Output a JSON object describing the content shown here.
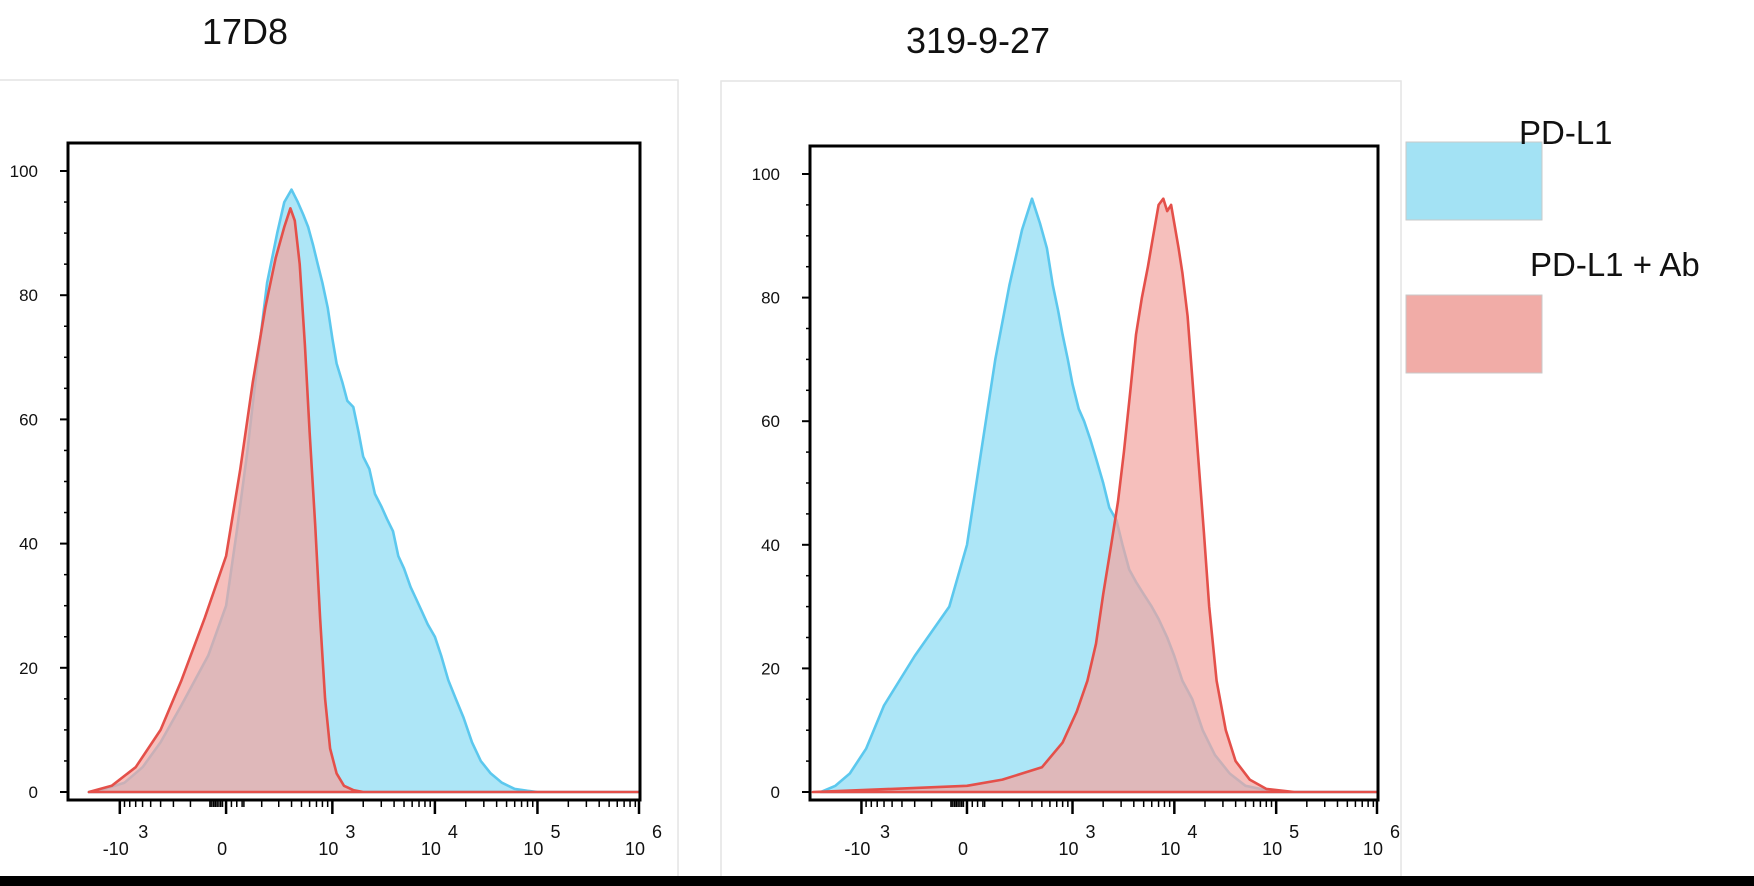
{
  "chart_data": [
    {
      "type": "area",
      "title": "17D8",
      "ylim": [
        0,
        100
      ],
      "y_ticks": [
        "0",
        "20",
        "40",
        "60",
        "80",
        "100"
      ],
      "x_scale": "biexponential",
      "x_ticks": [
        {
          "base": "-10",
          "exp": "3",
          "value": -1000
        },
        {
          "base": "0",
          "exp": "",
          "value": 0
        },
        {
          "base": "10",
          "exp": "3",
          "value": 1000
        },
        {
          "base": "10",
          "exp": "4",
          "value": 10000
        },
        {
          "base": "10",
          "exp": "5",
          "value": 100000
        },
        {
          "base": "10",
          "exp": "6",
          "value": 1000000
        }
      ],
      "series": [
        {
          "name": "PD-L1",
          "color": "#5cc8ee",
          "fill": "#a9e5f7",
          "x": [
            -2000,
            -1400,
            -900,
            -600,
            -400,
            -250,
            -100,
            0,
            60,
            120,
            180,
            230,
            290,
            340,
            400,
            460,
            520,
            580,
            650,
            720,
            800,
            900,
            1000,
            1100,
            1250,
            1400,
            1600,
            1800,
            2000,
            2300,
            2600,
            3000,
            3400,
            3900,
            4400,
            5000,
            5800,
            6600,
            7500,
            8500,
            10000,
            11500,
            13500,
            16000,
            19000,
            23000,
            28000,
            35000,
            45000,
            60000,
            80000,
            100000,
            150000,
            300000,
            1000000
          ],
          "values": [
            0,
            0.5,
            1.5,
            4,
            8,
            14,
            22,
            30,
            42,
            55,
            70,
            82,
            90,
            95,
            97,
            95,
            93,
            91,
            88,
            85,
            82,
            78,
            73,
            69,
            66,
            63,
            62,
            58,
            54,
            52,
            48,
            46,
            44,
            42,
            38,
            36,
            33,
            31,
            29,
            27,
            25,
            22,
            18,
            15,
            12,
            8,
            5,
            3,
            1.5,
            0.5,
            0.2,
            0,
            0,
            0,
            0
          ]
        },
        {
          "name": "PD-L1 + Ab",
          "color": "#e4504a",
          "fill": "#f2a6a2",
          "x": [
            -2000,
            -1200,
            -700,
            -400,
            -250,
            -120,
            0,
            80,
            150,
            220,
            280,
            340,
            390,
            430,
            480,
            540,
            600,
            680,
            760,
            850,
            950,
            1100,
            1300,
            1600,
            2000,
            2600,
            3500,
            5000,
            10000,
            100000,
            1000000
          ],
          "values": [
            0,
            1,
            4,
            10,
            18,
            28,
            38,
            52,
            66,
            78,
            86,
            91,
            94,
            92,
            85,
            72,
            58,
            43,
            28,
            15,
            7,
            3,
            1,
            0.3,
            0,
            0,
            0,
            0,
            0,
            0,
            0
          ]
        }
      ]
    },
    {
      "type": "area",
      "title": "319-9-27",
      "ylim": [
        0,
        100
      ],
      "y_ticks": [
        "0",
        "20",
        "40",
        "60",
        "80",
        "100"
      ],
      "x_scale": "biexponential",
      "x_ticks": [
        {
          "base": "-10",
          "exp": "3",
          "value": -1000
        },
        {
          "base": "0",
          "exp": "",
          "value": 0
        },
        {
          "base": "10",
          "exp": "3",
          "value": 1000
        },
        {
          "base": "10",
          "exp": "4",
          "value": 10000
        },
        {
          "base": "10",
          "exp": "5",
          "value": 100000
        },
        {
          "base": "10",
          "exp": "6",
          "value": 1000000
        }
      ],
      "series": [
        {
          "name": "PD-L1",
          "color": "#5cc8ee",
          "fill": "#a9e5f7",
          "x": [
            -2500,
            -1800,
            -1300,
            -900,
            -600,
            -300,
            -100,
            0,
            80,
            160,
            240,
            320,
            400,
            480,
            560,
            640,
            720,
            800,
            900,
            1000,
            1150,
            1300,
            1500,
            1700,
            2000,
            2300,
            2700,
            3100,
            3600,
            4200,
            5000,
            6000,
            7000,
            8500,
            10000,
            12000,
            15000,
            19000,
            25000,
            35000,
            50000,
            80000,
            120000,
            200000,
            1000000
          ],
          "values": [
            0,
            1,
            3,
            7,
            14,
            22,
            30,
            40,
            55,
            70,
            82,
            91,
            96,
            92,
            88,
            82,
            78,
            74,
            70,
            66,
            62,
            60,
            57,
            54,
            50,
            46,
            44,
            40,
            36,
            34,
            32,
            30,
            28,
            25,
            22,
            18,
            15,
            10,
            6,
            3,
            1,
            0.3,
            0,
            0,
            0
          ]
        },
        {
          "name": "PD-L1 + Ab",
          "color": "#e4504a",
          "fill": "#f2a6a2",
          "x": [
            -3000,
            -500,
            0,
            200,
            500,
            800,
            1100,
            1400,
            1700,
            2000,
            2400,
            2800,
            3200,
            3700,
            4200,
            4800,
            5500,
            6200,
            7000,
            7800,
            8500,
            9300,
            10000,
            11000,
            12000,
            13500,
            15000,
            17000,
            19500,
            22000,
            26000,
            32000,
            40000,
            55000,
            80000,
            150000,
            1000000
          ],
          "values": [
            0,
            0.5,
            1,
            2,
            4,
            8,
            13,
            18,
            24,
            32,
            40,
            47,
            55,
            65,
            74,
            80,
            85,
            90,
            95,
            96,
            94,
            95,
            92,
            88,
            84,
            77,
            67,
            55,
            42,
            30,
            18,
            10,
            5,
            2,
            0.5,
            0,
            0
          ]
        }
      ]
    }
  ],
  "legend": {
    "items": [
      {
        "label": "PD-L1",
        "color": "#a3e2f4"
      },
      {
        "label": "PD-L1 + Ab",
        "color": "#f1aca7"
      }
    ]
  }
}
